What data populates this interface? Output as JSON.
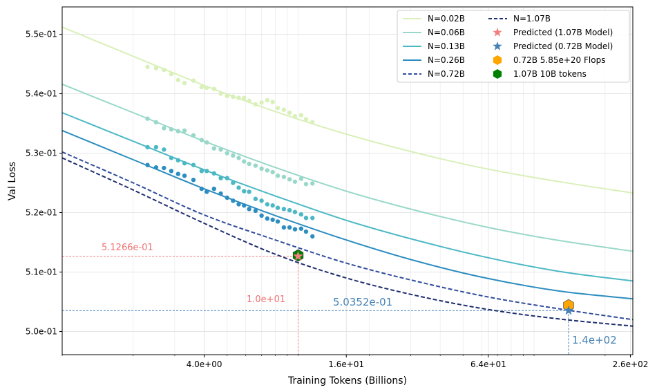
{
  "chart_data": {
    "type": "line",
    "xscale": "log",
    "xlabel": "Training Tokens (Billions)",
    "ylabel": "Val Loss",
    "xlim": [
      1.0,
      262.144
    ],
    "ylim": [
      0.4961,
      0.5546
    ],
    "xticks": [
      {
        "value": 4.0,
        "label": "4.0e+00"
      },
      {
        "value": 16.0,
        "label": "1.6e+01"
      },
      {
        "value": 64.0,
        "label": "6.4e+01"
      },
      {
        "value": 256.0,
        "label": "2.6e+02"
      }
    ],
    "yticks": [
      {
        "value": 0.5,
        "label": "5.0e-01"
      },
      {
        "value": 0.51,
        "label": "5.1e-01"
      },
      {
        "value": 0.52,
        "label": "5.2e-01"
      },
      {
        "value": 0.53,
        "label": "5.3e-01"
      },
      {
        "value": 0.54,
        "label": "5.4e-01"
      },
      {
        "value": 0.55,
        "label": "5.5e-01"
      }
    ],
    "grid": true,
    "legend_position": "top-right",
    "series": [
      {
        "name": "N=0.02B",
        "color": "#d9f0b8",
        "dash": "solid",
        "x": [
          1,
          2,
          4,
          8,
          16,
          32,
          64,
          128,
          262
        ],
        "y": [
          0.5512,
          0.5463,
          0.5414,
          0.537,
          0.5332,
          0.53,
          0.5273,
          0.5252,
          0.5233
        ],
        "scatter": {
          "x": [
            2.3,
            2.5,
            2.7,
            2.9,
            3.1,
            3.3,
            3.6,
            3.9,
            4.1,
            4.4,
            4.7,
            5.0,
            5.3,
            5.6,
            5.9,
            6.2,
            6.6,
            7.0,
            7.4,
            7.8,
            8.2,
            8.7,
            9.2,
            9.7,
            10.3,
            10.8,
            11.5
          ],
          "y": [
            0.5445,
            0.5443,
            0.544,
            0.5433,
            0.5423,
            0.5418,
            0.5422,
            0.5411,
            0.541,
            0.5408,
            0.54,
            0.5396,
            0.5395,
            0.5393,
            0.5393,
            0.5388,
            0.5382,
            0.5385,
            0.5389,
            0.5386,
            0.5376,
            0.5373,
            0.5368,
            0.5362,
            0.5364,
            0.5357,
            0.5352
          ]
        }
      },
      {
        "name": "N=0.06B",
        "color": "#99d8c9",
        "dash": "solid",
        "x": [
          1,
          2,
          4,
          8,
          16,
          32,
          64,
          128,
          262
        ],
        "y": [
          0.5416,
          0.5368,
          0.532,
          0.5276,
          0.5236,
          0.5203,
          0.5175,
          0.5153,
          0.5135
        ],
        "scatter": {
          "x": [
            2.3,
            2.5,
            2.7,
            2.9,
            3.1,
            3.3,
            3.6,
            3.9,
            4.1,
            4.4,
            4.7,
            5.0,
            5.3,
            5.6,
            5.9,
            6.2,
            6.6,
            7.0,
            7.4,
            7.8,
            8.2,
            8.7,
            9.2,
            9.7,
            10.3,
            10.8,
            11.5
          ],
          "y": [
            0.5358,
            0.5352,
            0.5342,
            0.534,
            0.5337,
            0.5338,
            0.533,
            0.5322,
            0.5318,
            0.5308,
            0.5306,
            0.53,
            0.5296,
            0.5292,
            0.5286,
            0.5282,
            0.5279,
            0.5274,
            0.5271,
            0.5268,
            0.5262,
            0.526,
            0.5256,
            0.5252,
            0.5257,
            0.5248,
            0.5249
          ]
        }
      },
      {
        "name": "N=0.13B",
        "color": "#4bb8c4",
        "dash": "solid",
        "x": [
          1,
          2,
          4,
          8,
          16,
          32,
          64,
          128,
          262
        ],
        "y": [
          0.5368,
          0.532,
          0.5272,
          0.5228,
          0.5187,
          0.5153,
          0.5124,
          0.5101,
          0.5085
        ],
        "scatter": {
          "x": [
            2.3,
            2.5,
            2.7,
            2.9,
            3.1,
            3.3,
            3.6,
            3.9,
            4.1,
            4.4,
            4.7,
            5.0,
            5.3,
            5.6,
            5.9,
            6.2,
            6.6,
            7.0,
            7.4,
            7.8,
            8.2,
            8.7,
            9.2,
            9.7,
            10.3,
            10.8,
            11.5
          ],
          "y": [
            0.531,
            0.531,
            0.5306,
            0.5292,
            0.5288,
            0.5283,
            0.528,
            0.527,
            0.527,
            0.5266,
            0.5258,
            0.5258,
            0.525,
            0.5242,
            0.5236,
            0.5235,
            0.5223,
            0.522,
            0.5214,
            0.5212,
            0.5208,
            0.5206,
            0.5204,
            0.5201,
            0.5197,
            0.5191,
            0.5191
          ]
        }
      },
      {
        "name": "N=0.26B",
        "color": "#2c8dc0",
        "dash": "solid",
        "x": [
          1,
          2,
          4,
          8,
          16,
          32,
          64,
          128,
          262
        ],
        "y": [
          0.5338,
          0.5289,
          0.524,
          0.5195,
          0.5154,
          0.5118,
          0.5089,
          0.5068,
          0.5055
        ],
        "scatter": {
          "x": [
            2.3,
            2.5,
            2.7,
            2.9,
            3.1,
            3.3,
            3.6,
            3.9,
            4.1,
            4.4,
            4.7,
            5.0,
            5.3,
            5.6,
            5.9,
            6.2,
            6.6,
            7.0,
            7.4,
            7.8,
            8.2,
            8.7,
            9.2,
            9.7,
            10.3,
            10.8,
            11.5
          ],
          "y": [
            0.528,
            0.5276,
            0.5275,
            0.527,
            0.5265,
            0.5262,
            0.5255,
            0.524,
            0.5235,
            0.524,
            0.5232,
            0.5225,
            0.522,
            0.5214,
            0.5212,
            0.5206,
            0.5203,
            0.5195,
            0.519,
            0.5188,
            0.5185,
            0.5175,
            0.5175,
            0.5172,
            0.5173,
            0.5168,
            0.516
          ]
        }
      },
      {
        "name": "N=0.72B",
        "color": "#2f4b9c",
        "dash": "dashed",
        "x": [
          1,
          2,
          4,
          8,
          16,
          32,
          64,
          128,
          262
        ],
        "y": [
          0.5302,
          0.525,
          0.5196,
          0.5154,
          0.5115,
          0.5084,
          0.5058,
          0.5038,
          0.502
        ]
      },
      {
        "name": "N=1.07B",
        "color": "#1f2e6e",
        "dash": "dashed",
        "x": [
          1,
          2,
          4,
          8,
          16,
          32,
          64,
          128,
          262
        ],
        "y": [
          0.5292,
          0.5238,
          0.5182,
          0.513,
          0.509,
          0.506,
          0.5037,
          0.5021,
          0.5009
        ]
      }
    ],
    "markers": [
      {
        "name": "Predicted (1.07B Model)",
        "shape": "star",
        "color": "#f08080",
        "x": 10.0,
        "y": 0.51266
      },
      {
        "name": "Predicted (0.72B Model)",
        "shape": "star",
        "color": "#4682b4",
        "x": 140.0,
        "y": 0.50352
      },
      {
        "name": "0.72B 5.85e+20 Flops",
        "shape": "hexagon",
        "color": "#ffa500",
        "x": 140.0,
        "y": 0.5044
      },
      {
        "name": "1.07B 10B tokens",
        "shape": "hexagon",
        "color": "#008000",
        "x": 10.0,
        "y": 0.5128
      }
    ],
    "annotations": [
      {
        "text": "5.1266e-01",
        "color": "#f07070"
      },
      {
        "text": "1.0e+01",
        "color": "#f07070"
      },
      {
        "text": "5.0352e-01",
        "color": "#4682b4"
      },
      {
        "text": "1.4e+02",
        "color": "#4682b4"
      }
    ],
    "legend": [
      {
        "label": "N=0.02B",
        "kind": "line",
        "color": "#d9f0b8",
        "dash": "solid"
      },
      {
        "label": "N=0.06B",
        "kind": "line",
        "color": "#99d8c9",
        "dash": "solid"
      },
      {
        "label": "N=0.13B",
        "kind": "line",
        "color": "#4bb8c4",
        "dash": "solid"
      },
      {
        "label": "N=0.26B",
        "kind": "line",
        "color": "#2c8dc0",
        "dash": "solid"
      },
      {
        "label": "N=0.72B",
        "kind": "line",
        "color": "#2f4b9c",
        "dash": "dashed"
      },
      {
        "label": "N=1.07B",
        "kind": "line",
        "color": "#1f2e6e",
        "dash": "dashed"
      },
      {
        "label": "Predicted (1.07B Model)",
        "kind": "star",
        "color": "#f08080"
      },
      {
        "label": "Predicted (0.72B Model)",
        "kind": "star",
        "color": "#4682b4"
      },
      {
        "label": "0.72B 5.85e+20 Flops",
        "kind": "hexagon",
        "color": "#ffa500"
      },
      {
        "label": "1.07B 10B tokens",
        "kind": "hexagon",
        "color": "#008000"
      }
    ]
  }
}
